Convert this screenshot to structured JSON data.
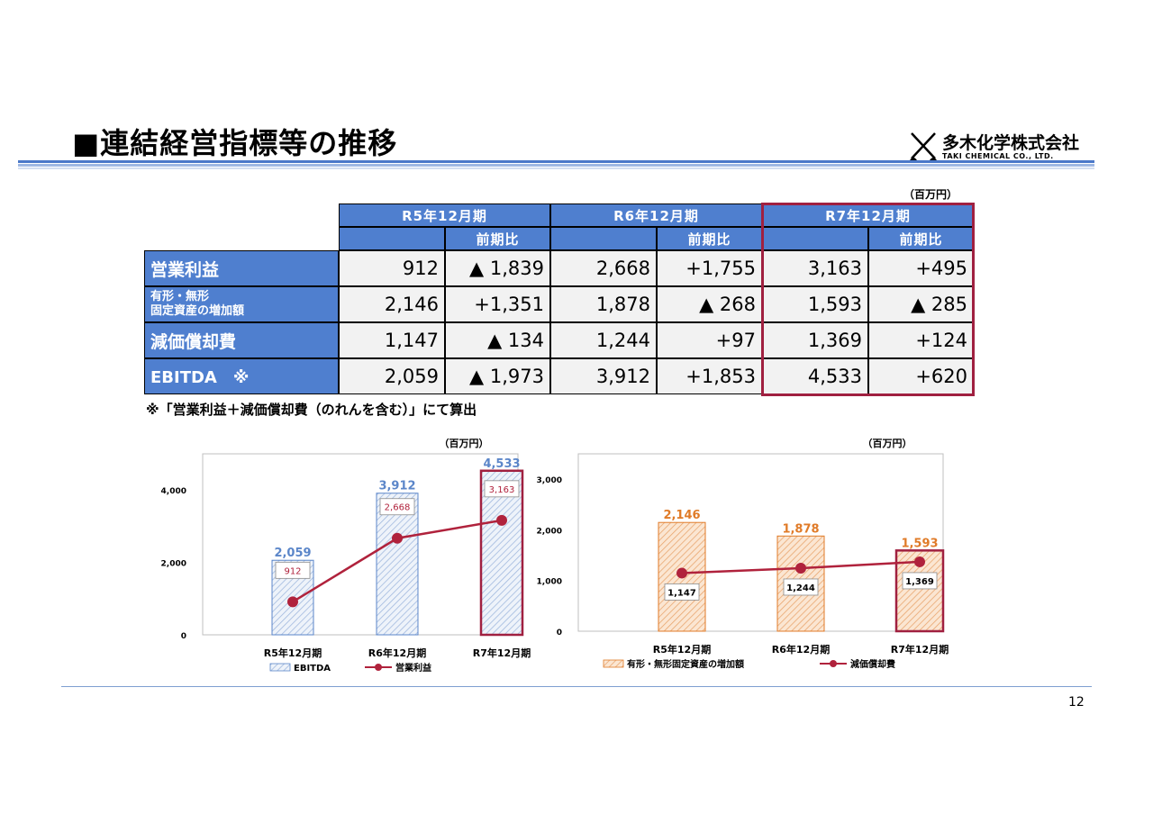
{
  "title": "■連結経営指標等の推移",
  "logo": {
    "name_jp": "多木化学株式会社",
    "name_en": "TAKI CHEMICAL CO., LTD."
  },
  "unit": "（百万円）",
  "table": {
    "periods": [
      "R5年12月期",
      "R6年12月期",
      "R7年12月期"
    ],
    "yoy_label": "前期比",
    "rows": [
      {
        "label": "営業利益",
        "values": [
          "912",
          "▲ 1,839",
          "2,668",
          "+1,755",
          "3,163",
          "+495"
        ]
      },
      {
        "label_line1": "有形・無形",
        "label_line2": "固定資産の増加額",
        "values": [
          "2,146",
          "+1,351",
          "1,878",
          "▲ 268",
          "1,593",
          "▲ 285"
        ]
      },
      {
        "label": "減価償却費",
        "values": [
          "1,147",
          "▲ 134",
          "1,244",
          "+97",
          "1,369",
          "+124"
        ]
      },
      {
        "label": "EBITDA　※",
        "values": [
          "2,059",
          "▲ 1,973",
          "3,912",
          "+1,853",
          "4,533",
          "+620"
        ]
      }
    ]
  },
  "footnote": "※「営業利益＋減価償却費（のれんを含む）」にて算出",
  "chart_data": [
    {
      "type": "bar",
      "unit": "（百万円）",
      "categories": [
        "R5年12月期",
        "R6年12月期",
        "R7年12月期"
      ],
      "ylim": [
        0,
        5000
      ],
      "yticks": [
        0,
        2000,
        4000
      ],
      "ytick_labels": [
        "0",
        "2,000",
        "4,000"
      ],
      "series": [
        {
          "name": "EBITDA",
          "kind": "bar",
          "values": [
            2059,
            3912,
            4533
          ],
          "labels": [
            "2,059",
            "3,912",
            "4,533"
          ]
        },
        {
          "name": "営業利益",
          "kind": "line",
          "values": [
            912,
            2668,
            3163
          ],
          "labels": [
            "912",
            "2,668",
            "3,163"
          ]
        }
      ],
      "legend": "bottom",
      "highlight_last": true
    },
    {
      "type": "bar",
      "unit": "（百万円）",
      "categories": [
        "R5年12月期",
        "R6年12月期",
        "R7年12月期"
      ],
      "ylim": [
        0,
        3500
      ],
      "yticks": [
        0,
        1000,
        2000,
        3000
      ],
      "ytick_labels": [
        "0",
        "1,000",
        "2,000",
        "3,000"
      ],
      "series": [
        {
          "name": "有形・無形固定資産の増加額",
          "kind": "bar",
          "values": [
            2146,
            1878,
            1593
          ],
          "labels": [
            "2,146",
            "1,878",
            "1,593"
          ]
        },
        {
          "name": "減価償却費",
          "kind": "line",
          "values": [
            1147,
            1244,
            1369
          ],
          "labels": [
            "1,147",
            "1,244",
            "1,369"
          ]
        }
      ],
      "legend": "bottom",
      "highlight_last": true
    }
  ],
  "colors": {
    "header_blue": "#4f7fcf",
    "highlight_red": "#a02040",
    "line_red": "#b0223c",
    "bar_blue": "#5b86c9",
    "bar_orange": "#e07b28"
  },
  "page_number": "12"
}
